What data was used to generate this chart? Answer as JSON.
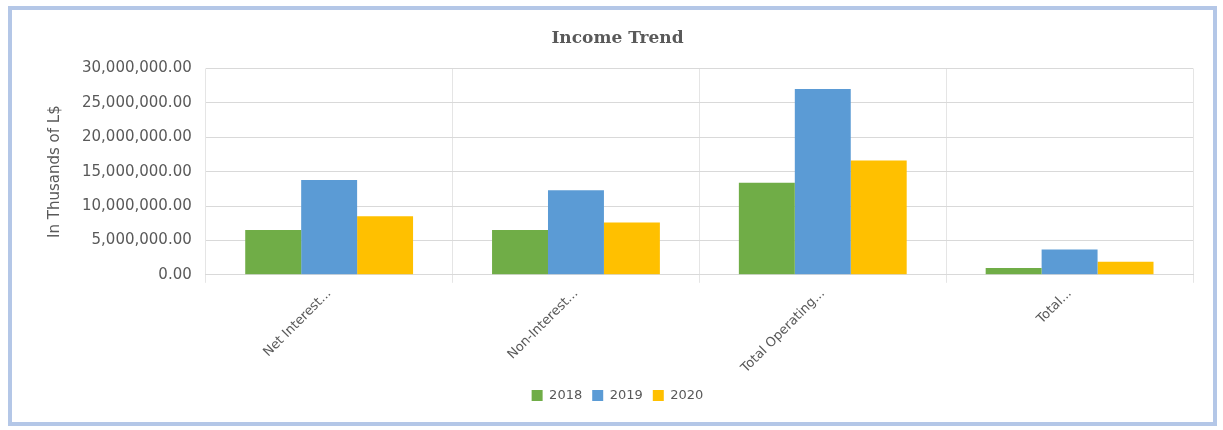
{
  "chart_data": {
    "type": "bar",
    "title": "Income Trend",
    "ylabel": "In Thusands of L$",
    "categories": [
      "Net Interest...",
      "Non-Interest...",
      "Total Operating...",
      "Total..."
    ],
    "series": [
      {
        "name": "2018",
        "color": "#70ad47",
        "values": [
          6500000,
          6500000,
          13400000,
          1000000
        ]
      },
      {
        "name": "2019",
        "color": "#5b9bd5",
        "values": [
          13800000,
          12300000,
          27000000,
          3700000
        ]
      },
      {
        "name": "2020",
        "color": "#ffc000",
        "values": [
          8500000,
          7600000,
          16600000,
          1900000
        ]
      }
    ],
    "ylim": [
      0,
      30000000
    ],
    "yticks": [
      {
        "value": 0,
        "label": "0.00"
      },
      {
        "value": 5000000,
        "label": "5,000,000.00"
      },
      {
        "value": 10000000,
        "label": "10,000,000.00"
      },
      {
        "value": 15000000,
        "label": "15,000,000.00"
      },
      {
        "value": 20000000,
        "label": "20,000,000.00"
      },
      {
        "value": 25000000,
        "label": "25,000,000.00"
      },
      {
        "value": 30000000,
        "label": "30,000,000.00"
      }
    ],
    "grid": true,
    "legend": "bottom"
  }
}
